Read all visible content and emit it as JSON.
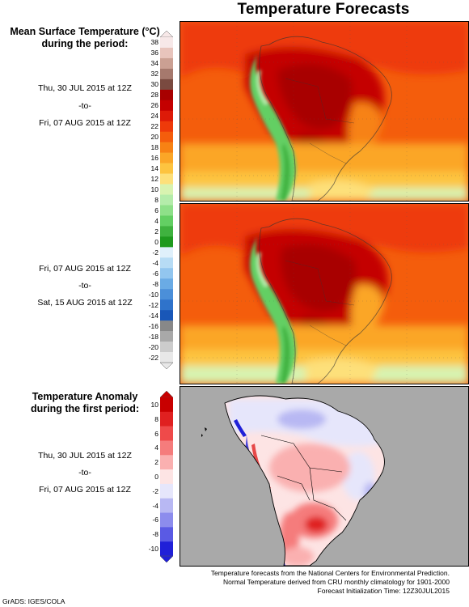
{
  "title": "Temperature Forecasts",
  "temperature_legend": {
    "heading_line1": "Mean Surface Temperature (°C)",
    "heading_line2": "during the period:",
    "ticks": [
      "38",
      "36",
      "34",
      "32",
      "30",
      "28",
      "26",
      "24",
      "22",
      "20",
      "18",
      "16",
      "14",
      "12",
      "10",
      "8",
      "6",
      "4",
      "2",
      "0",
      "-2",
      "-4",
      "-6",
      "-8",
      "-10",
      "-12",
      "-14",
      "-16",
      "-18",
      "-20",
      "-22"
    ],
    "colors": [
      "#f7e8e8",
      "#e8c4bc",
      "#cba093",
      "#a6796d",
      "#7a4a40",
      "#a80000",
      "#c40000",
      "#dd1a08",
      "#ee3a0a",
      "#f45d0c",
      "#f78214",
      "#fba627",
      "#fdc440",
      "#fde07a",
      "#d8f3b0",
      "#b4ecaa",
      "#8ee089",
      "#63cf63",
      "#3fb23f",
      "#1e9a1e",
      "#dff0fb",
      "#b7dcf5",
      "#92c6ef",
      "#6aabe5",
      "#4b8fd9",
      "#2f73cb",
      "#1957b8",
      "#888888",
      "#a9a9a9",
      "#cccccc",
      "#e8e8e8"
    ]
  },
  "period1": {
    "start": "Thu, 30 JUL 2015 at 12Z",
    "sep": "-to-",
    "end": "Fri, 07 AUG 2015 at 12Z"
  },
  "period2": {
    "start": "Fri, 07 AUG 2015 at 12Z",
    "sep": "-to-",
    "end": "Sat, 15 AUG 2015 at 12Z"
  },
  "anomaly_legend": {
    "heading_line1": "Temperature Anomaly",
    "heading_line2": "during the first period:",
    "ticks": [
      "10",
      "8",
      "6",
      "4",
      "2",
      "0",
      "-2",
      "-4",
      "-6",
      "-8",
      "-10"
    ],
    "colors": [
      "#c80000",
      "#e02020",
      "#ef4a4a",
      "#f57c7c",
      "#fab0b0",
      "#fde4e4",
      "#e6e6fb",
      "#b8b8f3",
      "#8c8ced",
      "#5a5ae4",
      "#2020d8"
    ]
  },
  "anomaly_period": {
    "start": "Thu, 30 JUL 2015 at 12Z",
    "sep": "-to-",
    "end": "Fri, 07 AUG 2015 at 12Z"
  },
  "credits": {
    "line1": "Temperature forecasts from the National Centers for Environmental Prediction.",
    "line2": "Normal Temperature derived from CRU monthly climatology for 1901-2000",
    "line3": "Forecast Initialization Time: 12Z30JUL2015"
  },
  "grads": "GrADS: IGES/COLA"
}
